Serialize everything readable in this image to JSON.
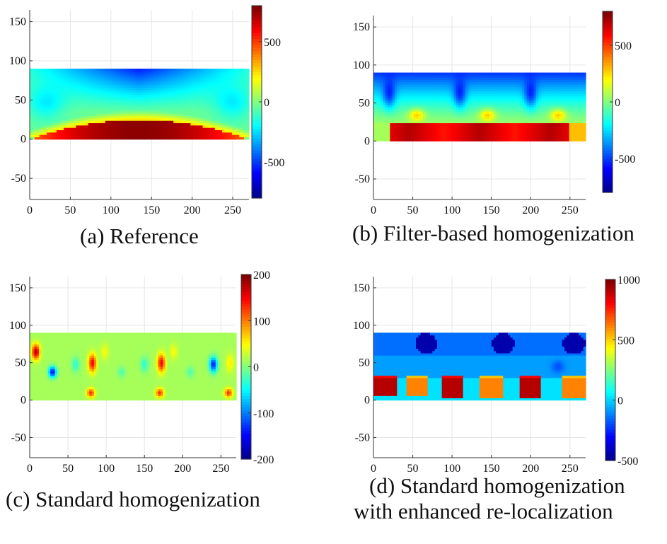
{
  "colors": {
    "colormap": [
      "#00008f",
      "#0000ff",
      "#00ffff",
      "#ffff00",
      "#ff0000",
      "#800000"
    ],
    "grid": "#e6e6e6",
    "axis": "#333333"
  },
  "chart_data": [
    {
      "type": "heatmap",
      "id": "a",
      "caption": "(a) Reference",
      "xlabel": "",
      "ylabel": "",
      "xlim": [
        0,
        270
      ],
      "ylim": [
        -77,
        165
      ],
      "xticks": [
        0,
        50,
        100,
        150,
        200,
        250
      ],
      "xtick_labels": [
        "0",
        "50",
        "100",
        "150",
        "200",
        "250"
      ],
      "yticks": [
        -50,
        0,
        50,
        100,
        150
      ],
      "ytick_labels": [
        "-50",
        "0",
        "50",
        "100",
        "150"
      ],
      "grid": true,
      "domain": [
        [
          0,
          0
        ],
        [
          270,
          90
        ]
      ],
      "colorbar": {
        "range": [
          -800,
          800
        ],
        "ticks": [
          -500,
          0,
          500
        ],
        "tick_labels": [
          "-500",
          "0",
          "500"
        ]
      },
      "field": "reference"
    },
    {
      "type": "heatmap",
      "id": "b",
      "caption": "(b) Filter-based homogenization",
      "xlabel": "",
      "ylabel": "",
      "xlim": [
        0,
        270
      ],
      "ylim": [
        -77,
        165
      ],
      "xticks": [
        0,
        50,
        100,
        150,
        200,
        250
      ],
      "xtick_labels": [
        "0",
        "50",
        "100",
        "150",
        "200",
        "250"
      ],
      "yticks": [
        -50,
        0,
        50,
        100,
        150
      ],
      "ytick_labels": [
        "-50",
        "0",
        "50",
        "100",
        "150"
      ],
      "grid": true,
      "domain": [
        [
          0,
          0
        ],
        [
          270,
          90
        ]
      ],
      "colorbar": {
        "range": [
          -800,
          800
        ],
        "ticks": [
          -500,
          0,
          500
        ],
        "tick_labels": [
          "-500",
          "0",
          "500"
        ]
      },
      "field": "filter"
    },
    {
      "type": "heatmap",
      "id": "c",
      "caption": "(c) Standard homogenization",
      "xlabel": "",
      "ylabel": "",
      "xlim": [
        0,
        270
      ],
      "ylim": [
        -77,
        165
      ],
      "xticks": [
        0,
        50,
        100,
        150,
        200,
        250
      ],
      "xtick_labels": [
        "0",
        "50",
        "100",
        "150",
        "200",
        "250"
      ],
      "yticks": [
        -50,
        0,
        50,
        100,
        150
      ],
      "ytick_labels": [
        "-50",
        "0",
        "50",
        "100",
        "150"
      ],
      "grid": true,
      "domain": [
        [
          0,
          0
        ],
        [
          270,
          90
        ]
      ],
      "colorbar": {
        "range": [
          -200,
          200
        ],
        "ticks": [
          -200,
          -100,
          0,
          100,
          200
        ],
        "tick_labels": [
          "-200",
          "-100",
          "0",
          "100",
          "200"
        ]
      },
      "field": "standard"
    },
    {
      "type": "heatmap",
      "id": "d",
      "caption": "(d) Standard homogenization",
      "caption2": "with enhanced re-localization",
      "xlabel": "",
      "ylabel": "",
      "xlim": [
        0,
        270
      ],
      "ylim": [
        -77,
        165
      ],
      "xticks": [
        0,
        50,
        100,
        150,
        200,
        250
      ],
      "xtick_labels": [
        "0",
        "50",
        "100",
        "150",
        "200",
        "250"
      ],
      "yticks": [
        -50,
        0,
        50,
        100,
        150
      ],
      "ytick_labels": [
        "-50",
        "0",
        "50",
        "100",
        "150"
      ],
      "grid": true,
      "domain": [
        [
          0,
          0
        ],
        [
          270,
          90
        ]
      ],
      "colorbar": {
        "range": [
          -500,
          1000
        ],
        "ticks": [
          -500,
          0,
          500,
          1000
        ],
        "tick_labels": [
          "-500",
          "0",
          "500",
          "1000"
        ]
      },
      "field": "enhanced"
    }
  ]
}
